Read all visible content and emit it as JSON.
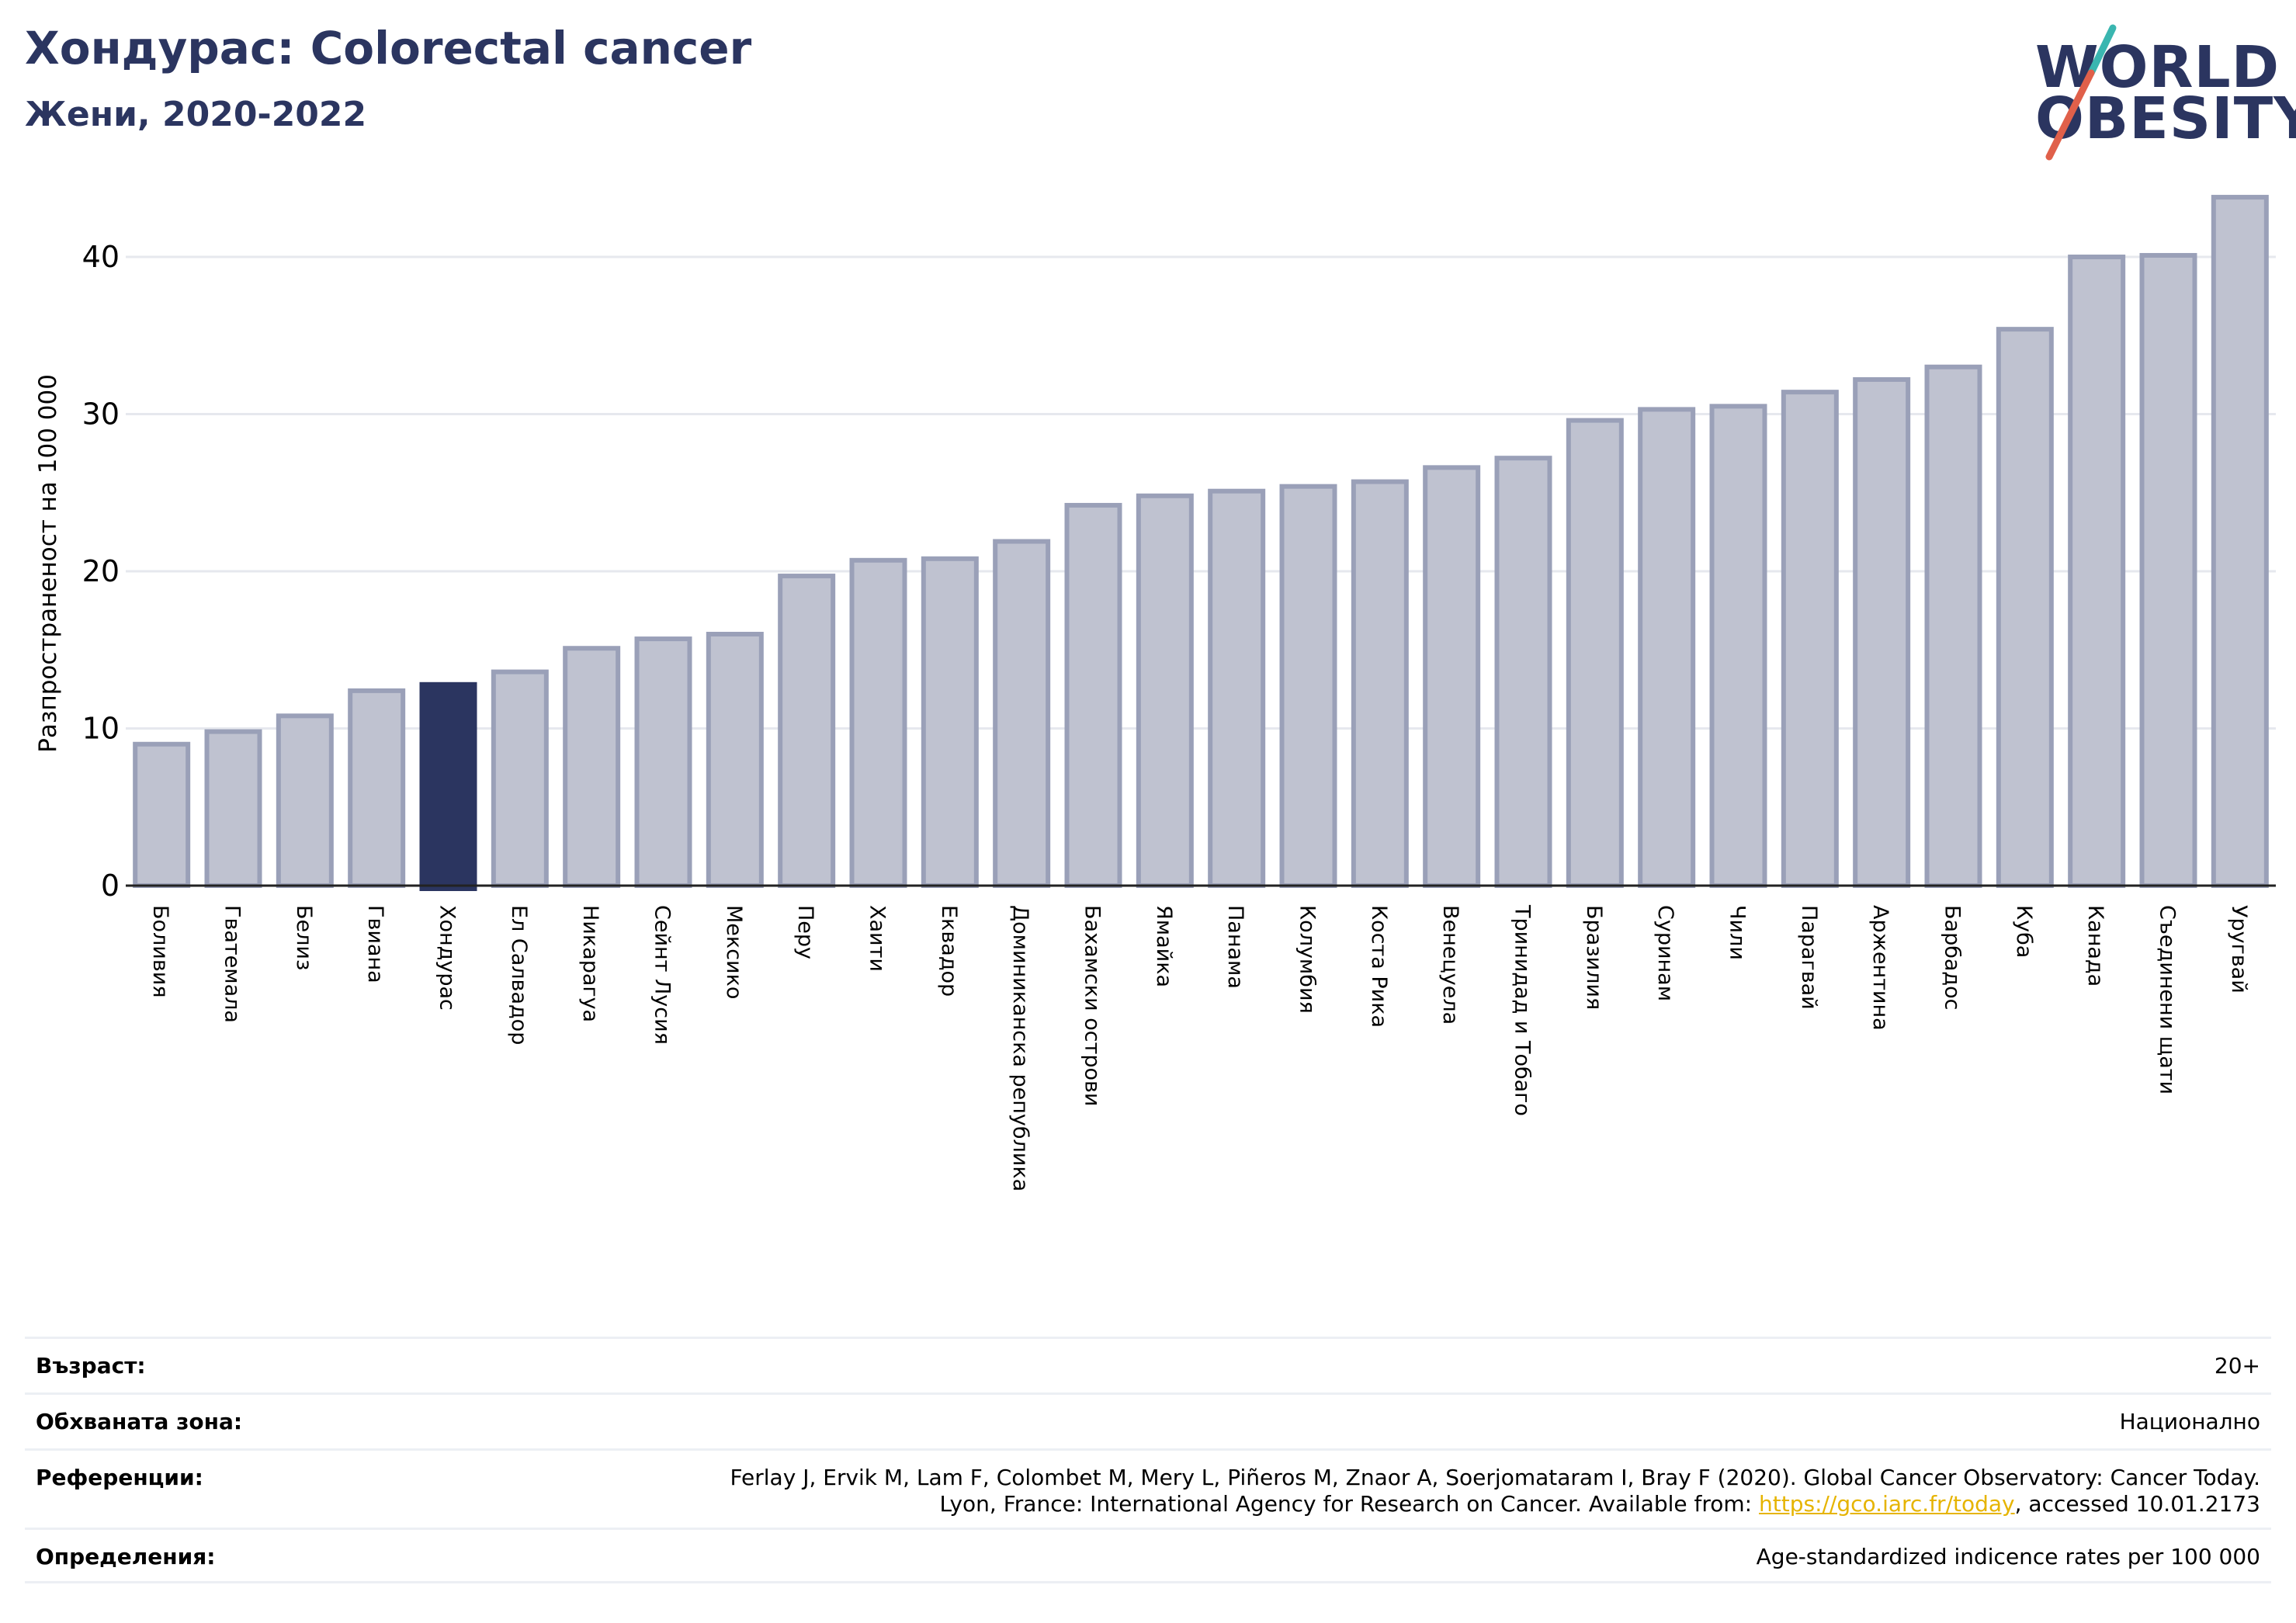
{
  "header": {
    "title": "Хондурас: Colorectal cancer",
    "subtitle": "Жени, 2020-2022"
  },
  "logo": {
    "line1": "WORLD",
    "line2": "OBESITY",
    "accent_teal": "#3ab6b0",
    "accent_red": "#e0604a"
  },
  "colors": {
    "bar_fill": "#bfc2d0",
    "bar_stroke": "#9aa0b8",
    "highlight": "#2b3560",
    "grid": "#e6e8ee",
    "title": "#2b3560"
  },
  "chart_data": {
    "type": "bar",
    "ylabel": "Разпространеност  на 100 000",
    "ylim": [
      0,
      45
    ],
    "yticks": [
      0,
      10,
      20,
      30,
      40
    ],
    "grid": true,
    "highlight_category": "Хондурас",
    "categories": [
      "Боливия",
      "Гватемала",
      "Белиз",
      "Гвиана",
      "Хондурас",
      "Ел Салвадор",
      "Никарагуа",
      "Сейнт Лусия",
      "Мексико",
      "Перу",
      "Хаити",
      "Еквадор",
      "Доминиканска република",
      "Бахамски острови",
      "Ямайка",
      "Панама",
      "Колумбия",
      "Коста Рика",
      "Венецуела",
      "Тринидад и Тобаго",
      "Бразилия",
      "Суринам",
      "Чили",
      "Парагвай",
      "Аржентина",
      "Барбадос",
      "Куба",
      "Канада",
      "Съединени щати",
      "Уругвай"
    ],
    "values": [
      9.0,
      9.8,
      10.8,
      12.4,
      12.8,
      13.6,
      15.1,
      15.7,
      16.0,
      19.7,
      20.7,
      20.8,
      21.9,
      24.2,
      24.8,
      25.1,
      25.4,
      25.7,
      26.6,
      27.2,
      29.6,
      30.3,
      30.5,
      31.4,
      32.2,
      33.0,
      35.4,
      40.0,
      40.1,
      43.8
    ]
  },
  "meta": {
    "age_label": "Възраст:",
    "age_value": "20+",
    "area_label": "Обхваната зона:",
    "area_value": "Национално",
    "ref_label": "Референции:",
    "ref_line1": "Ferlay J, Ervik M, Lam F, Colombet M, Mery L, Piñeros M, Znaor A, Soerjomataram I, Bray F (2020). Global Cancer Observatory: Cancer Today.",
    "ref_line2_pre": "Lyon, France: International Agency for Research on Cancer. Available from: ",
    "ref_link": "https://gco.iarc.fr/today",
    "ref_line2_post": ", accessed 10.01.2173",
    "def_label": "Определения:",
    "def_value": "Age-standardized indicence rates per 100 000"
  }
}
